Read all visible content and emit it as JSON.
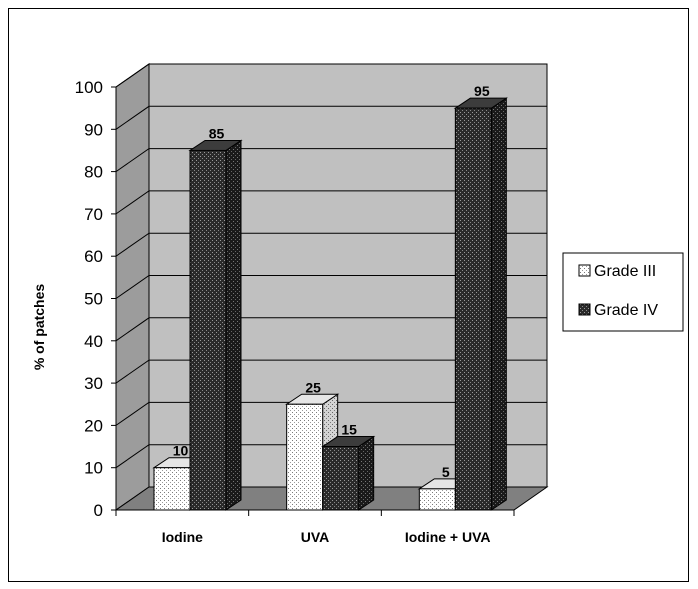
{
  "chart_data": {
    "type": "bar",
    "ylabel": "% of patches",
    "ylim": [
      0,
      100
    ],
    "yticks": [
      0,
      10,
      20,
      30,
      40,
      50,
      60,
      70,
      80,
      90,
      100
    ],
    "categories": [
      "Iodine",
      "UVA",
      "Iodine + UVA"
    ],
    "series": [
      {
        "name": "Grade III",
        "values": [
          10,
          25,
          5
        ]
      },
      {
        "name": "Grade IV",
        "values": [
          85,
          15,
          95
        ]
      }
    ],
    "legend_position": "right",
    "grid": true,
    "style": "3d"
  }
}
